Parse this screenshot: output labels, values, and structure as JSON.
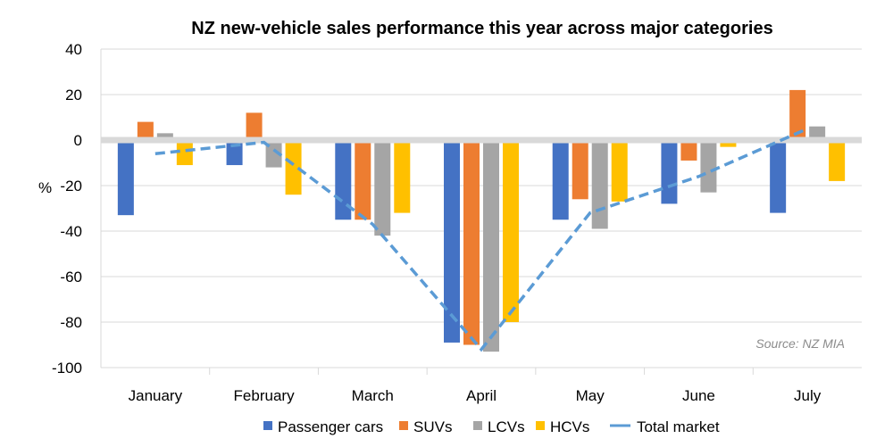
{
  "chart_data": {
    "type": "bar",
    "title": "NZ new-vehicle sales performance this year across major categories",
    "ylabel": "%",
    "xlabel": "",
    "ylim": [
      -100,
      40
    ],
    "yticks": [
      40,
      20,
      0,
      -20,
      -40,
      -60,
      -80,
      -100
    ],
    "categories": [
      "January",
      "February",
      "March",
      "April",
      "May",
      "June",
      "July"
    ],
    "series": [
      {
        "name": "Passenger cars",
        "color": "#4472c4",
        "values": [
          -33,
          -11,
          -35,
          -89,
          -35,
          -28,
          -32
        ]
      },
      {
        "name": "SUVs",
        "color": "#ed7d31",
        "values": [
          8,
          12,
          -35,
          -90,
          -26,
          -9,
          22
        ]
      },
      {
        "name": "LCVs",
        "color": "#a5a5a5",
        "values": [
          3,
          -12,
          -42,
          -93,
          -39,
          -23,
          6
        ]
      },
      {
        "name": "HCVs",
        "color": "#ffc000",
        "values": [
          -11,
          -24,
          -32,
          -80,
          -27,
          -3,
          -18
        ]
      }
    ],
    "line_series": {
      "name": "Total market",
      "color": "#5b9bd5",
      "style": "dashed",
      "values": [
        -6,
        -1,
        -37,
        -92,
        -32,
        -16,
        5
      ]
    },
    "source": "Source: NZ MIA",
    "grid": true,
    "legend_position": "bottom"
  }
}
